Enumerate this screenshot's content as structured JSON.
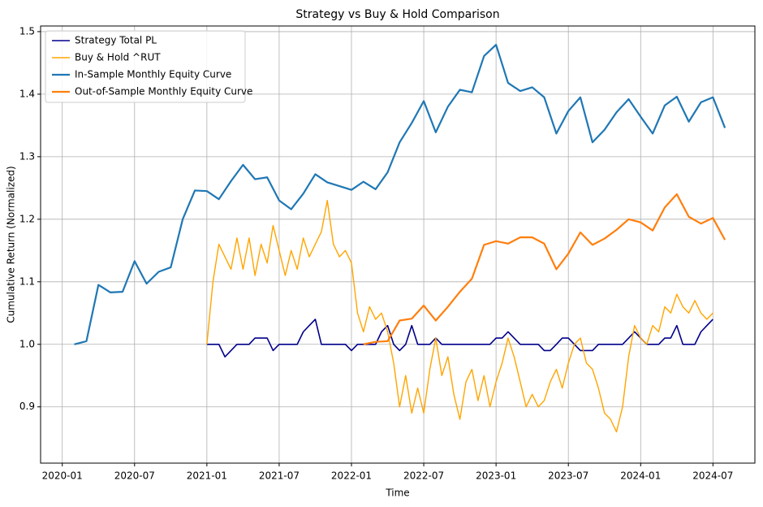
{
  "chart_data": {
    "type": "line",
    "title": "Strategy vs Buy & Hold Comparison",
    "x_label": "Time",
    "y_label": "Cumulative Return (Normalized)",
    "xlim": [
      2019.85,
      2024.79
    ],
    "ylim": [
      0.81,
      1.509
    ],
    "grid": true,
    "legend": "upper left",
    "xticks": [
      {
        "value": 2020,
        "label": "2020-01"
      },
      {
        "value": 2020.5,
        "label": "2020-07"
      },
      {
        "value": 2021,
        "label": "2021-01"
      },
      {
        "value": 2021.5,
        "label": "2021-07"
      },
      {
        "value": 2022,
        "label": "2022-01"
      },
      {
        "value": 2022.5,
        "label": "2022-07"
      },
      {
        "value": 2023,
        "label": "2023-01"
      },
      {
        "value": 2023.5,
        "label": "2023-07"
      },
      {
        "value": 2024,
        "label": "2024-01"
      },
      {
        "value": 2024.5,
        "label": "2024-07"
      }
    ],
    "yticks": [
      0.9,
      {
        "value": 1,
        "label": "1.0"
      },
      1.1,
      1.2,
      1.3,
      1.4,
      1.5
    ],
    "series": [
      {
        "name": "Strategy Total PL",
        "color": "#00008b",
        "x": [
          2021,
          2021.042,
          2021.083,
          2021.125,
          2021.167,
          2021.208,
          2021.25,
          2021.292,
          2021.333,
          2021.375,
          2021.417,
          2021.458,
          2021.5,
          2021.542,
          2021.583,
          2021.625,
          2021.667,
          2021.708,
          2021.75,
          2021.792,
          2021.833,
          2021.875,
          2021.917,
          2021.958,
          2022,
          2022.042,
          2022.083,
          2022.125,
          2022.167,
          2022.208,
          2022.25,
          2022.292,
          2022.333,
          2022.375,
          2022.417,
          2022.458,
          2022.5,
          2022.542,
          2022.583,
          2022.625,
          2022.667,
          2022.708,
          2022.75,
          2022.792,
          2022.833,
          2022.875,
          2022.917,
          2022.958,
          2023,
          2023.042,
          2023.083,
          2023.125,
          2023.167,
          2023.208,
          2023.25,
          2023.292,
          2023.333,
          2023.375,
          2023.417,
          2023.458,
          2023.5,
          2023.542,
          2023.583,
          2023.625,
          2023.667,
          2023.708,
          2023.75,
          2023.792,
          2023.833,
          2023.875,
          2023.917,
          2023.958,
          2024,
          2024.042,
          2024.083,
          2024.125,
          2024.167,
          2024.208,
          2024.25,
          2024.292,
          2024.333,
          2024.375,
          2024.417,
          2024.458,
          2024.5
        ],
        "values": [
          1.0,
          1.0,
          1.0,
          0.98,
          0.99,
          1.0,
          1.0,
          1.0,
          1.01,
          1.01,
          1.01,
          0.99,
          1.0,
          1.0,
          1.0,
          1.0,
          1.02,
          1.03,
          1.04,
          1.0,
          1.0,
          1.0,
          1.0,
          1.0,
          0.99,
          1.0,
          1.0,
          1.0,
          1.0,
          1.02,
          1.03,
          1.0,
          0.99,
          1.0,
          1.03,
          1.0,
          1.0,
          1.0,
          1.01,
          1.0,
          1.0,
          1.0,
          1.0,
          1.0,
          1.0,
          1.0,
          1.0,
          1.0,
          1.01,
          1.01,
          1.02,
          1.01,
          1.0,
          1.0,
          1.0,
          1.0,
          0.99,
          0.99,
          1.0,
          1.01,
          1.01,
          1.0,
          0.99,
          0.99,
          0.99,
          1.0,
          1.0,
          1.0,
          1.0,
          1.0,
          1.01,
          1.02,
          1.01,
          1.0,
          1.0,
          1.0,
          1.01,
          1.01,
          1.03,
          1.0,
          1.0,
          1.0,
          1.02,
          1.03,
          1.04
        ]
      },
      {
        "name": "Buy & Hold ^RUT",
        "color": "#ffa500",
        "x": [
          2021,
          2021.042,
          2021.083,
          2021.125,
          2021.167,
          2021.208,
          2021.25,
          2021.292,
          2021.333,
          2021.375,
          2021.417,
          2021.458,
          2021.5,
          2021.542,
          2021.583,
          2021.625,
          2021.667,
          2021.708,
          2021.75,
          2021.792,
          2021.833,
          2021.875,
          2021.917,
          2021.958,
          2022,
          2022.042,
          2022.083,
          2022.125,
          2022.167,
          2022.208,
          2022.25,
          2022.292,
          2022.333,
          2022.375,
          2022.417,
          2022.458,
          2022.5,
          2022.542,
          2022.583,
          2022.625,
          2022.667,
          2022.708,
          2022.75,
          2022.792,
          2022.833,
          2022.875,
          2022.917,
          2022.958,
          2023,
          2023.042,
          2023.083,
          2023.125,
          2023.167,
          2023.208,
          2023.25,
          2023.292,
          2023.333,
          2023.375,
          2023.417,
          2023.458,
          2023.5,
          2023.542,
          2023.583,
          2023.625,
          2023.667,
          2023.708,
          2023.75,
          2023.792,
          2023.833,
          2023.875,
          2023.917,
          2023.958,
          2024,
          2024.042,
          2024.083,
          2024.125,
          2024.167,
          2024.208,
          2024.25,
          2024.292,
          2024.333,
          2024.375,
          2024.417,
          2024.458,
          2024.5
        ],
        "values": [
          1.0,
          1.1,
          1.16,
          1.14,
          1.12,
          1.17,
          1.12,
          1.17,
          1.11,
          1.16,
          1.13,
          1.19,
          1.15,
          1.11,
          1.15,
          1.12,
          1.17,
          1.14,
          1.16,
          1.18,
          1.23,
          1.16,
          1.14,
          1.15,
          1.13,
          1.05,
          1.02,
          1.06,
          1.04,
          1.05,
          1.02,
          0.97,
          0.9,
          0.95,
          0.89,
          0.93,
          0.89,
          0.96,
          1.01,
          0.95,
          0.98,
          0.92,
          0.88,
          0.94,
          0.96,
          0.91,
          0.95,
          0.9,
          0.94,
          0.97,
          1.01,
          0.98,
          0.94,
          0.9,
          0.92,
          0.9,
          0.91,
          0.94,
          0.96,
          0.93,
          0.97,
          1.0,
          1.01,
          0.97,
          0.96,
          0.93,
          0.89,
          0.88,
          0.86,
          0.9,
          0.98,
          1.03,
          1.01,
          1.0,
          1.03,
          1.02,
          1.06,
          1.05,
          1.08,
          1.06,
          1.05,
          1.07,
          1.05,
          1.04,
          1.05
        ]
      },
      {
        "name": "In-Sample Monthly Equity Curve",
        "color": "#1f77b4",
        "x": [
          2020.083,
          2020.167,
          2020.25,
          2020.333,
          2020.417,
          2020.5,
          2020.583,
          2020.667,
          2020.75,
          2020.833,
          2020.917,
          2021,
          2021.083,
          2021.167,
          2021.25,
          2021.333,
          2021.417,
          2021.5,
          2021.583,
          2021.667,
          2021.75,
          2021.833,
          2021.917,
          2022,
          2022.083,
          2022.167,
          2022.25,
          2022.333,
          2022.417,
          2022.5,
          2022.583,
          2022.667,
          2022.75,
          2022.833,
          2022.917,
          2023,
          2023.083,
          2023.167,
          2023.25,
          2023.333,
          2023.417,
          2023.5,
          2023.583,
          2023.667,
          2023.75,
          2023.833,
          2023.917,
          2024,
          2024.083,
          2024.167,
          2024.25,
          2024.333,
          2024.417,
          2024.5,
          2024.583
        ],
        "values": [
          1.0,
          1.005,
          1.095,
          1.083,
          1.084,
          1.133,
          1.097,
          1.116,
          1.123,
          1.2,
          1.246,
          1.245,
          1.232,
          1.261,
          1.287,
          1.264,
          1.267,
          1.23,
          1.216,
          1.241,
          1.272,
          1.259,
          1.253,
          1.247,
          1.26,
          1.248,
          1.275,
          1.323,
          1.354,
          1.389,
          1.339,
          1.38,
          1.407,
          1.403,
          1.461,
          1.479,
          1.418,
          1.405,
          1.411,
          1.395,
          1.337,
          1.373,
          1.395,
          1.323,
          1.343,
          1.371,
          1.392,
          1.364,
          1.337,
          1.382,
          1.396,
          1.356,
          1.387,
          1.395,
          1.346
        ]
      },
      {
        "name": "Out-of-Sample Monthly Equity Curve",
        "color": "#ff7f0e",
        "x": [
          2022.083,
          2022.167,
          2022.25,
          2022.333,
          2022.417,
          2022.5,
          2022.583,
          2022.667,
          2022.75,
          2022.833,
          2022.917,
          2023,
          2023.083,
          2023.167,
          2023.25,
          2023.333,
          2023.417,
          2023.5,
          2023.583,
          2023.667,
          2023.75,
          2023.833,
          2023.917,
          2024,
          2024.083,
          2024.167,
          2024.25,
          2024.333,
          2024.417,
          2024.5,
          2024.583
        ],
        "values": [
          1.0,
          1.004,
          1.005,
          1.038,
          1.041,
          1.062,
          1.038,
          1.06,
          1.084,
          1.105,
          1.159,
          1.165,
          1.161,
          1.171,
          1.171,
          1.161,
          1.12,
          1.145,
          1.179,
          1.159,
          1.169,
          1.183,
          1.2,
          1.195,
          1.182,
          1.219,
          1.24,
          1.204,
          1.193,
          1.202,
          1.167
        ]
      }
    ]
  }
}
